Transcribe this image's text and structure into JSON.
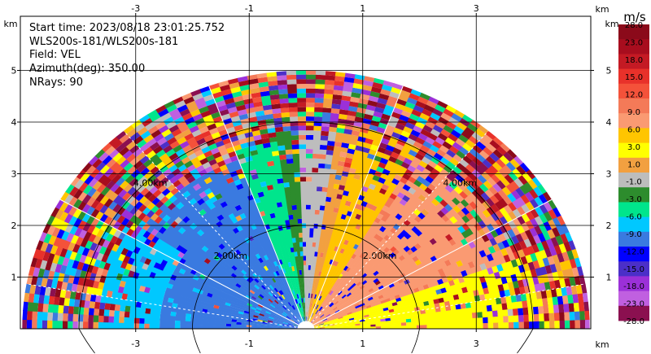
{
  "chart_data": {
    "type": "heatmap",
    "info": {
      "start_time": "Start time: 2023/08/18 23:01:25.752",
      "instrument": "WLS200s-181/WLS200s-181",
      "field": "Field: VEL",
      "azimuth": "Azimuth(deg): 350.00",
      "nrays": "NRays: 90"
    },
    "x_axis": {
      "unit": "km",
      "range": [
        -5.4,
        5.0
      ],
      "ticks": [
        -3,
        -1,
        1,
        3
      ],
      "tick_labels": [
        "-3",
        "-1",
        "1",
        "3"
      ]
    },
    "y_axis": {
      "unit": "km",
      "range": [
        0,
        6.0
      ],
      "ticks": [
        1,
        2,
        3,
        4,
        5
      ],
      "tick_labels": [
        "1",
        "2",
        "3",
        "4",
        "5"
      ]
    },
    "range_rings": [
      {
        "radius_km": 2.0,
        "label": "2.00km"
      },
      {
        "radius_km": 4.0,
        "label": "4.00km"
      }
    ],
    "max_range_km": 5.0,
    "colorbar": {
      "unit": "m/s",
      "tick_labels": [
        "28.0",
        "23.0",
        "18.0",
        "15.0",
        "12.0",
        "9.0",
        "6.0",
        "3.0",
        "1.0",
        "-1.0",
        "-3.0",
        "-6.0",
        "-9.0",
        "-12.0",
        "-15.0",
        "-18.0",
        "-23.0",
        "-28.0"
      ],
      "colors": [
        "#8b0a1a",
        "#a80d1e",
        "#c41a24",
        "#e8312a",
        "#f4523a",
        "#f47a58",
        "#fa9a72",
        "#ffc500",
        "#ffff00",
        "#f2a040",
        "#bdbdbd",
        "#2d8c2d",
        "#00e58c",
        "#00c8ff",
        "#3a7ae0",
        "#0000ff",
        "#4b2fc8",
        "#9b30d8",
        "#c060e0",
        "#8b1050"
      ]
    },
    "velocity_regions": [
      {
        "azimuth_deg": [
          -90,
          -55
        ],
        "range_km": [
          0,
          2.5
        ],
        "color": "#3a7ae0",
        "velocity_ms": -10.5
      },
      {
        "azimuth_deg": [
          -90,
          -55
        ],
        "range_km": [
          2.5,
          3.6
        ],
        "color": "#00c8ff",
        "velocity_ms": -7.5
      },
      {
        "azimuth_deg": [
          -55,
          -20
        ],
        "range_km": [
          0,
          3.4
        ],
        "color": "#3a7ae0",
        "velocity_ms": -10.5
      },
      {
        "azimuth_deg": [
          -20,
          -8
        ],
        "range_km": [
          0,
          3.6
        ],
        "color": "#00e58c",
        "velocity_ms": -4.5
      },
      {
        "azimuth_deg": [
          -8,
          -2
        ],
        "range_km": [
          0,
          3.8
        ],
        "color": "#2d8c2d",
        "velocity_ms": -2.0
      },
      {
        "azimuth_deg": [
          -2,
          8
        ],
        "range_km": [
          0,
          3.8
        ],
        "color": "#bdbdbd",
        "velocity_ms": 0.0
      },
      {
        "azimuth_deg": [
          8,
          15
        ],
        "range_km": [
          0,
          3.8
        ],
        "color": "#f2a040",
        "velocity_ms": 2.0
      },
      {
        "azimuth_deg": [
          15,
          30
        ],
        "range_km": [
          0,
          4.0
        ],
        "color": "#ffc500",
        "velocity_ms": 4.5
      },
      {
        "azimuth_deg": [
          30,
          70
        ],
        "range_km": [
          0,
          3.9
        ],
        "color": "#fa9a72",
        "velocity_ms": 7.5
      },
      {
        "azimuth_deg": [
          70,
          90
        ],
        "range_km": [
          0,
          4.4
        ],
        "color": "#ffff00",
        "velocity_ms": 7.5
      }
    ]
  }
}
